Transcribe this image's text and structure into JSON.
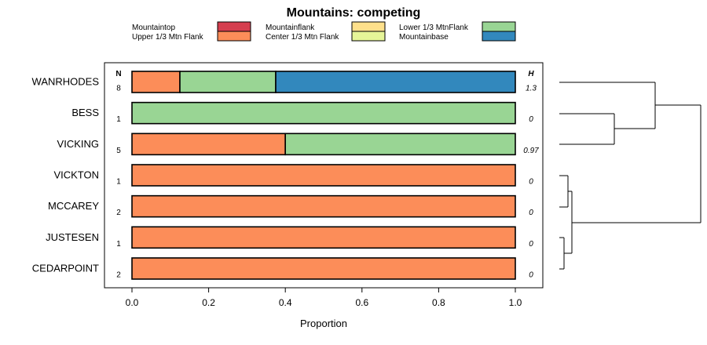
{
  "chart_data": {
    "type": "bar",
    "orientation": "horizontal-stacked",
    "title": "Mountains: competing",
    "xlabel": "Proportion",
    "ylabel": "",
    "xlim": [
      0,
      1
    ],
    "xticks": [
      "0.0",
      "0.2",
      "0.4",
      "0.6",
      "0.8",
      "1.0"
    ],
    "column_headers": {
      "n": "N",
      "h": "H"
    },
    "categories": [
      "WANRHODES",
      "BESS",
      "VICKING",
      "VICKTON",
      "MCCAREY",
      "JUSTESEN",
      "CEDARPOINT"
    ],
    "n_values": [
      "8",
      "1",
      "5",
      "1",
      "2",
      "1",
      "2"
    ],
    "h_values": [
      "1.3",
      "0",
      "0.97",
      "0",
      "0",
      "0",
      "0"
    ],
    "series": [
      {
        "name": "Mountaintop",
        "color": "#d53e4f",
        "values": [
          0,
          0,
          0,
          0,
          0,
          0,
          0
        ]
      },
      {
        "name": "Upper 1/3 Mtn Flank",
        "color": "#fc8d59",
        "values": [
          0.125,
          0,
          0.4,
          1,
          1,
          1,
          1
        ]
      },
      {
        "name": "Mountainflank",
        "color": "#fee08b",
        "values": [
          0,
          0,
          0,
          0,
          0,
          0,
          0
        ]
      },
      {
        "name": "Center 1/3 Mtn Flank",
        "color": "#e6f598",
        "values": [
          0,
          0,
          0,
          0,
          0,
          0,
          0
        ]
      },
      {
        "name": "Lower 1/3 MtnFlank",
        "color": "#99d594",
        "values": [
          0.25,
          1,
          0.6,
          0,
          0,
          0,
          0
        ]
      },
      {
        "name": "Mountainbase",
        "color": "#3288bd",
        "values": [
          0.625,
          0,
          0,
          0,
          0,
          0,
          0
        ]
      }
    ],
    "legend_position": "top"
  }
}
